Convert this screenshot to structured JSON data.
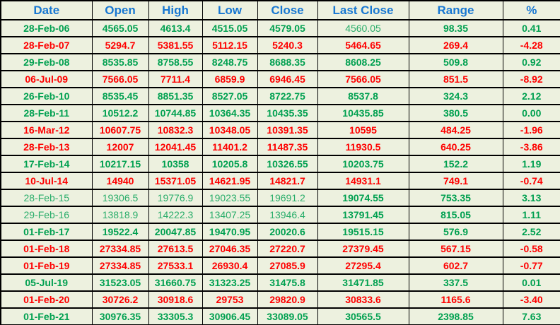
{
  "chart_data": {
    "type": "table",
    "columns": [
      "Date",
      "Open",
      "High",
      "Low",
      "Close",
      "Last Close",
      "Range",
      "%"
    ],
    "rows": [
      [
        "28-Feb-06",
        "4565.05",
        "4613.4",
        "4515.05",
        "4579.05",
        "4560.05",
        "98.35",
        "0.41"
      ],
      [
        "28-Feb-07",
        "5294.7",
        "5381.55",
        "5112.15",
        "5240.3",
        "5464.65",
        "269.4",
        "-4.28"
      ],
      [
        "29-Feb-08",
        "8535.85",
        "8758.55",
        "8248.75",
        "8688.35",
        "8608.25",
        "509.8",
        "0.92"
      ],
      [
        "06-Jul-09",
        "7566.05",
        "7711.4",
        "6859.9",
        "6946.45",
        "7566.05",
        "851.5",
        "-8.92"
      ],
      [
        "26-Feb-10",
        "8535.45",
        "8851.35",
        "8527.05",
        "8722.75",
        "8537.8",
        "324.3",
        "2.12"
      ],
      [
        "28-Feb-11",
        "10512.2",
        "10744.85",
        "10364.35",
        "10435.35",
        "10435.85",
        "380.5",
        "0.00"
      ],
      [
        "16-Mar-12",
        "10607.75",
        "10832.3",
        "10348.05",
        "10391.35",
        "10595",
        "484.25",
        "-1.96"
      ],
      [
        "28-Feb-13",
        "12007",
        "12041.45",
        "11401.2",
        "11487.35",
        "11930.5",
        "640.25",
        "-3.86"
      ],
      [
        "17-Feb-14",
        "10217.15",
        "10358",
        "10205.8",
        "10326.55",
        "10203.75",
        "152.2",
        "1.19"
      ],
      [
        "10-Jul-14",
        "14940",
        "15371.05",
        "14621.95",
        "14821.7",
        "14931.1",
        "749.1",
        "-0.74"
      ],
      [
        "28-Feb-15",
        "19306.5",
        "19776.9",
        "19023.55",
        "19691.2",
        "19074.55",
        "753.35",
        "3.13"
      ],
      [
        "29-Feb-16",
        "13818.9",
        "14222.3",
        "13407.25",
        "13946.4",
        "13791.45",
        "815.05",
        "1.11"
      ],
      [
        "01-Feb-17",
        "19522.4",
        "20047.85",
        "19470.95",
        "20020.6",
        "19515.15",
        "576.9",
        "2.52"
      ],
      [
        "01-Feb-18",
        "27334.85",
        "27613.5",
        "27046.35",
        "27220.7",
        "27379.45",
        "567.15",
        "-0.58"
      ],
      [
        "01-Feb-19",
        "27334.85",
        "27533.1",
        "26930.4",
        "27085.9",
        "27295.4",
        "602.7",
        "-0.77"
      ],
      [
        "05-Jul-19",
        "31523.05",
        "31660.75",
        "31323.25",
        "31475.8",
        "31471.85",
        "337.5",
        "0.01"
      ],
      [
        "01-Feb-20",
        "30726.2",
        "30918.6",
        "29753",
        "29820.9",
        "30833.6",
        "1165.6",
        "-3.40"
      ],
      [
        "01-Feb-21",
        "30976.35",
        "33305.3",
        "30906.45",
        "33089.05",
        "30565.5",
        "2398.85",
        "7.63"
      ]
    ],
    "row_tones": [
      "green",
      "red",
      "green",
      "red",
      "green",
      "green",
      "red",
      "red",
      "green",
      "red",
      "green",
      "green",
      "green",
      "red",
      "red",
      "green",
      "red",
      "green"
    ],
    "muted_cells_by_row": {
      "0": [
        5
      ],
      "10": [
        0,
        1,
        2,
        3,
        4
      ],
      "11": [
        0,
        1,
        2,
        3,
        4
      ]
    },
    "column_keys": [
      "date",
      "open",
      "high",
      "low",
      "close",
      "last_close",
      "range",
      "pct"
    ],
    "legend_note": ""
  },
  "colors": {
    "green": "#00A050",
    "green_muted": "#29AD6A",
    "red": "#FE0000",
    "header_blue": "#1777D2",
    "cell_bg": "#EDF1DF",
    "border": "#000000"
  }
}
